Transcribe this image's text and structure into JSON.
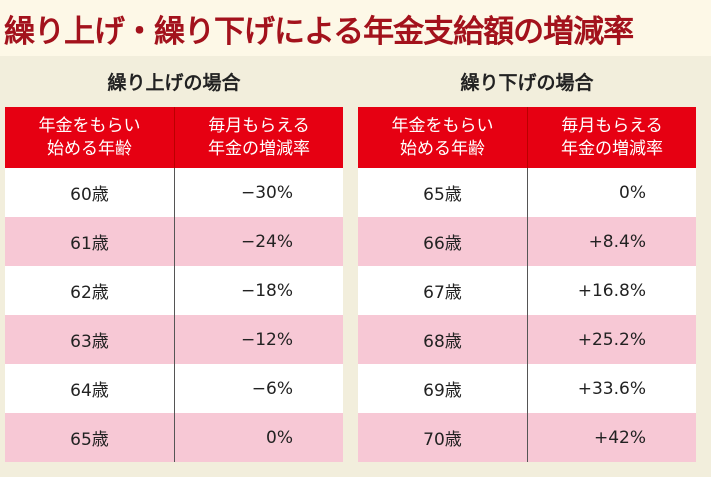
{
  "title": "繰り上げ・繰り下げによる年金支給額の増減率",
  "tables": [
    {
      "caption": "繰り上げの場合",
      "headers": [
        "年金をもらい\n始める年齢",
        "毎月もらえる\n年金の増減率"
      ],
      "rows": [
        {
          "age": "60歳",
          "rate": "−30%"
        },
        {
          "age": "61歳",
          "rate": "−24%"
        },
        {
          "age": "62歳",
          "rate": "−18%"
        },
        {
          "age": "63歳",
          "rate": "−12%"
        },
        {
          "age": "64歳",
          "rate": "−6%"
        },
        {
          "age": "65歳",
          "rate": "0%"
        }
      ]
    },
    {
      "caption": "繰り下げの場合",
      "headers": [
        "年金をもらい\n始める年齢",
        "毎月もらえる\n年金の増減率"
      ],
      "rows": [
        {
          "age": "65歳",
          "rate": "0%"
        },
        {
          "age": "66歳",
          "rate": "+8.4%"
        },
        {
          "age": "67歳",
          "rate": "+16.8%"
        },
        {
          "age": "68歳",
          "rate": "+25.2%"
        },
        {
          "age": "69歳",
          "rate": "+33.6%"
        },
        {
          "age": "70歳",
          "rate": "+42%"
        }
      ]
    }
  ]
}
